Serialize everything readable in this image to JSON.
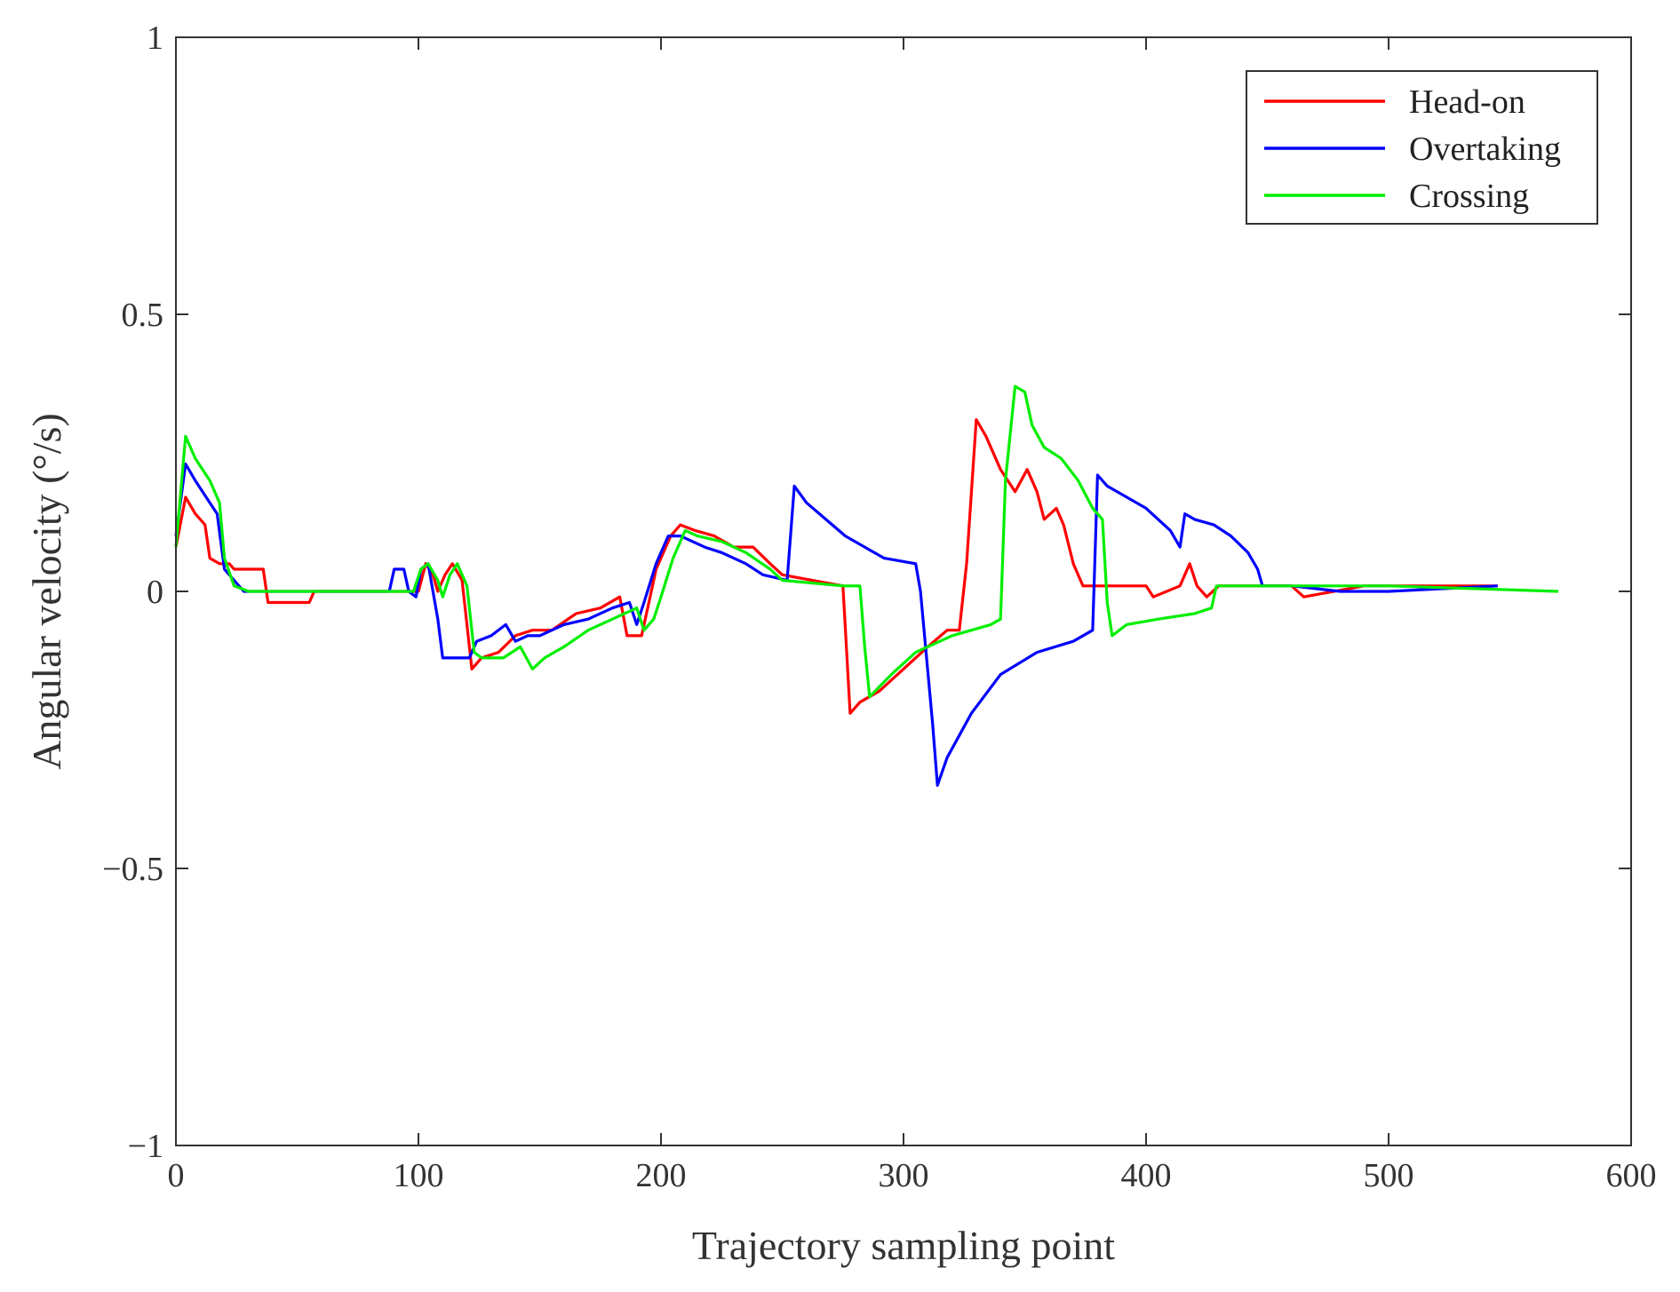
{
  "chart_data": {
    "type": "line",
    "xlabel": "Trajectory sampling point",
    "ylabel": "Angular velocity (°/s)",
    "xlim": [
      0,
      600
    ],
    "ylim": [
      -1,
      1
    ],
    "xticks": [
      0,
      100,
      200,
      300,
      400,
      500,
      600
    ],
    "yticks": [
      -1,
      -0.5,
      0,
      0.5,
      1
    ],
    "xtick_labels": [
      "0",
      "100",
      "200",
      "300",
      "400",
      "500",
      "600"
    ],
    "ytick_labels": [
      "−1",
      "−0.5",
      "0",
      "0.5",
      "1"
    ],
    "grid": false,
    "legend_position": "top-right",
    "series": [
      {
        "name": "Head-on",
        "color": "#ff0000",
        "points": [
          [
            0,
            0.08
          ],
          [
            4,
            0.17
          ],
          [
            8,
            0.14
          ],
          [
            12,
            0.12
          ],
          [
            14,
            0.06
          ],
          [
            18,
            0.05
          ],
          [
            22,
            0.05
          ],
          [
            24,
            0.04
          ],
          [
            36,
            0.04
          ],
          [
            38,
            -0.02
          ],
          [
            55,
            -0.02
          ],
          [
            57,
            0.0
          ],
          [
            100,
            0.0
          ],
          [
            103,
            0.05
          ],
          [
            106,
            0.03
          ],
          [
            108,
            0.0
          ],
          [
            111,
            0.03
          ],
          [
            114,
            0.05
          ],
          [
            118,
            0.02
          ],
          [
            122,
            -0.14
          ],
          [
            126,
            -0.12
          ],
          [
            133,
            -0.11
          ],
          [
            140,
            -0.08
          ],
          [
            147,
            -0.07
          ],
          [
            155,
            -0.07
          ],
          [
            165,
            -0.04
          ],
          [
            175,
            -0.03
          ],
          [
            183,
            -0.01
          ],
          [
            186,
            -0.08
          ],
          [
            192,
            -0.08
          ],
          [
            195,
            -0.02
          ],
          [
            198,
            0.04
          ],
          [
            204,
            0.1
          ],
          [
            208,
            0.12
          ],
          [
            214,
            0.11
          ],
          [
            222,
            0.1
          ],
          [
            230,
            0.08
          ],
          [
            238,
            0.08
          ],
          [
            245,
            0.05
          ],
          [
            250,
            0.03
          ],
          [
            275,
            0.01
          ],
          [
            278,
            -0.22
          ],
          [
            282,
            -0.2
          ],
          [
            290,
            -0.18
          ],
          [
            300,
            -0.14
          ],
          [
            310,
            -0.1
          ],
          [
            318,
            -0.07
          ],
          [
            323,
            -0.07
          ],
          [
            326,
            0.05
          ],
          [
            330,
            0.31
          ],
          [
            334,
            0.28
          ],
          [
            340,
            0.22
          ],
          [
            346,
            0.18
          ],
          [
            351,
            0.22
          ],
          [
            355,
            0.18
          ],
          [
            358,
            0.13
          ],
          [
            363,
            0.15
          ],
          [
            366,
            0.12
          ],
          [
            370,
            0.05
          ],
          [
            374,
            0.01
          ],
          [
            400,
            0.01
          ],
          [
            403,
            -0.01
          ],
          [
            414,
            0.01
          ],
          [
            418,
            0.05
          ],
          [
            421,
            0.01
          ],
          [
            425,
            -0.01
          ],
          [
            430,
            0.01
          ],
          [
            460,
            0.01
          ],
          [
            465,
            -0.01
          ],
          [
            490,
            0.01
          ],
          [
            500,
            0.01
          ],
          [
            545,
            0.01
          ]
        ]
      },
      {
        "name": "Overtaking",
        "color": "#0000ff",
        "points": [
          [
            0,
            0.1
          ],
          [
            4,
            0.23
          ],
          [
            8,
            0.2
          ],
          [
            14,
            0.16
          ],
          [
            17,
            0.14
          ],
          [
            20,
            0.04
          ],
          [
            24,
            0.02
          ],
          [
            28,
            0.0
          ],
          [
            40,
            0.0
          ],
          [
            88,
            0.0
          ],
          [
            90,
            0.04
          ],
          [
            94,
            0.04
          ],
          [
            96,
            0.0
          ],
          [
            99,
            -0.01
          ],
          [
            101,
            0.04
          ],
          [
            104,
            0.05
          ],
          [
            108,
            -0.05
          ],
          [
            110,
            -0.12
          ],
          [
            118,
            -0.12
          ],
          [
            121,
            -0.12
          ],
          [
            124,
            -0.09
          ],
          [
            130,
            -0.08
          ],
          [
            136,
            -0.06
          ],
          [
            140,
            -0.09
          ],
          [
            145,
            -0.08
          ],
          [
            150,
            -0.08
          ],
          [
            160,
            -0.06
          ],
          [
            170,
            -0.05
          ],
          [
            180,
            -0.03
          ],
          [
            187,
            -0.02
          ],
          [
            190,
            -0.06
          ],
          [
            193,
            -0.02
          ],
          [
            198,
            0.05
          ],
          [
            203,
            0.1
          ],
          [
            208,
            0.1
          ],
          [
            213,
            0.09
          ],
          [
            218,
            0.08
          ],
          [
            225,
            0.07
          ],
          [
            235,
            0.05
          ],
          [
            242,
            0.03
          ],
          [
            252,
            0.02
          ],
          [
            255,
            0.19
          ],
          [
            260,
            0.16
          ],
          [
            268,
            0.13
          ],
          [
            276,
            0.1
          ],
          [
            284,
            0.08
          ],
          [
            292,
            0.06
          ],
          [
            305,
            0.05
          ],
          [
            307,
            0.0
          ],
          [
            312,
            -0.24
          ],
          [
            314,
            -0.35
          ],
          [
            318,
            -0.3
          ],
          [
            328,
            -0.22
          ],
          [
            340,
            -0.15
          ],
          [
            355,
            -0.11
          ],
          [
            370,
            -0.09
          ],
          [
            378,
            -0.07
          ],
          [
            380,
            0.21
          ],
          [
            384,
            0.19
          ],
          [
            392,
            0.17
          ],
          [
            400,
            0.15
          ],
          [
            410,
            0.11
          ],
          [
            414,
            0.08
          ],
          [
            416,
            0.14
          ],
          [
            420,
            0.13
          ],
          [
            428,
            0.12
          ],
          [
            435,
            0.1
          ],
          [
            442,
            0.07
          ],
          [
            446,
            0.04
          ],
          [
            448,
            0.01
          ],
          [
            460,
            0.01
          ],
          [
            480,
            0.0
          ],
          [
            500,
            0.0
          ],
          [
            545,
            0.01
          ]
        ]
      },
      {
        "name": "Crossing",
        "color": "#00ee00",
        "points": [
          [
            0,
            0.08
          ],
          [
            4,
            0.28
          ],
          [
            8,
            0.24
          ],
          [
            14,
            0.2
          ],
          [
            18,
            0.16
          ],
          [
            20,
            0.06
          ],
          [
            24,
            0.01
          ],
          [
            30,
            0.0
          ],
          [
            60,
            0.0
          ],
          [
            98,
            0.0
          ],
          [
            101,
            0.04
          ],
          [
            104,
            0.05
          ],
          [
            108,
            0.02
          ],
          [
            110,
            -0.01
          ],
          [
            113,
            0.03
          ],
          [
            116,
            0.05
          ],
          [
            120,
            0.01
          ],
          [
            123,
            -0.11
          ],
          [
            126,
            -0.12
          ],
          [
            135,
            -0.12
          ],
          [
            142,
            -0.1
          ],
          [
            147,
            -0.14
          ],
          [
            152,
            -0.12
          ],
          [
            160,
            -0.1
          ],
          [
            170,
            -0.07
          ],
          [
            180,
            -0.05
          ],
          [
            190,
            -0.03
          ],
          [
            193,
            -0.07
          ],
          [
            197,
            -0.05
          ],
          [
            200,
            -0.01
          ],
          [
            205,
            0.06
          ],
          [
            210,
            0.11
          ],
          [
            215,
            0.1
          ],
          [
            225,
            0.09
          ],
          [
            235,
            0.07
          ],
          [
            245,
            0.04
          ],
          [
            250,
            0.02
          ],
          [
            275,
            0.01
          ],
          [
            282,
            0.01
          ],
          [
            284,
            -0.1
          ],
          [
            286,
            -0.19
          ],
          [
            295,
            -0.15
          ],
          [
            305,
            -0.11
          ],
          [
            320,
            -0.08
          ],
          [
            336,
            -0.06
          ],
          [
            340,
            -0.05
          ],
          [
            342,
            0.2
          ],
          [
            346,
            0.37
          ],
          [
            350,
            0.36
          ],
          [
            353,
            0.3
          ],
          [
            358,
            0.26
          ],
          [
            365,
            0.24
          ],
          [
            372,
            0.2
          ],
          [
            378,
            0.15
          ],
          [
            382,
            0.13
          ],
          [
            384,
            -0.02
          ],
          [
            386,
            -0.08
          ],
          [
            392,
            -0.06
          ],
          [
            405,
            -0.05
          ],
          [
            420,
            -0.04
          ],
          [
            427,
            -0.03
          ],
          [
            429,
            0.01
          ],
          [
            450,
            0.01
          ],
          [
            500,
            0.01
          ],
          [
            570,
            0.0
          ]
        ]
      }
    ]
  }
}
